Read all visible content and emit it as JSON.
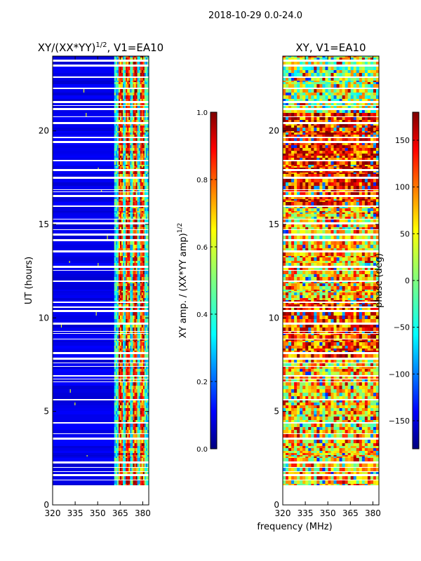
{
  "suptitle": "2018-10-29 0.0-24.0",
  "shared_xlabel": "frequency (MHz)",
  "chart_data": [
    {
      "type": "heatmap",
      "title_main": "XY/(XX*YY)",
      "title_sup": "1/2",
      "title_rest": ", V1=EA10",
      "xlabel": "",
      "ylabel": "UT (hours)",
      "xlim": [
        320,
        384
      ],
      "ylim": [
        0,
        24
      ],
      "xticks": [
        320,
        335,
        350,
        365,
        380
      ],
      "yticks": [
        0,
        5,
        10,
        15,
        20
      ],
      "xtick_labels": [
        "320",
        "335",
        "350",
        "365",
        "380"
      ],
      "ytick_labels": [
        "0",
        "5",
        "10",
        "15",
        "20"
      ],
      "data_start_hour": 1.0,
      "active_band_mhz": [
        361,
        384
      ],
      "bright_channels_mhz": [
        365,
        370,
        375,
        380
      ],
      "colorbar": {
        "label_main": "XY amp. / (XX*YY amp)",
        "label_sup": "1/2",
        "range": [
          0.0,
          1.0
        ],
        "ticks": [
          0.0,
          0.2,
          0.4,
          0.6,
          0.8,
          1.0
        ],
        "tick_labels": [
          "0.0",
          "0.2",
          "0.4",
          "0.6",
          "0.8",
          "1.0"
        ]
      }
    },
    {
      "type": "heatmap",
      "title_main": "XY, V1=EA10",
      "title_sup": "",
      "title_rest": "",
      "xlabel": "frequency (MHz)",
      "ylabel": "",
      "xlim": [
        320,
        384
      ],
      "ylim": [
        0,
        24
      ],
      "xticks": [
        320,
        335,
        350,
        365,
        380
      ],
      "yticks": [
        0,
        5,
        10,
        15,
        20
      ],
      "xtick_labels": [
        "320",
        "335",
        "350",
        "365",
        "380"
      ],
      "ytick_labels": [
        "0",
        "5",
        "10",
        "15",
        "20"
      ],
      "data_start_hour": 1.0,
      "colorbar": {
        "label_main": "phase (deg)",
        "label_sup": "",
        "range": [
          -180,
          180
        ],
        "ticks": [
          -150,
          -100,
          -50,
          0,
          50,
          100,
          150
        ],
        "tick_labels": [
          "−150",
          "−100",
          "−50",
          "0",
          "50",
          "100",
          "150"
        ]
      }
    }
  ],
  "colors": {
    "jet": [
      "#00007f",
      "#0000ff",
      "#007fff",
      "#00ffff",
      "#7fff7f",
      "#ffff00",
      "#ff7f00",
      "#ff0000",
      "#7f0000"
    ]
  }
}
